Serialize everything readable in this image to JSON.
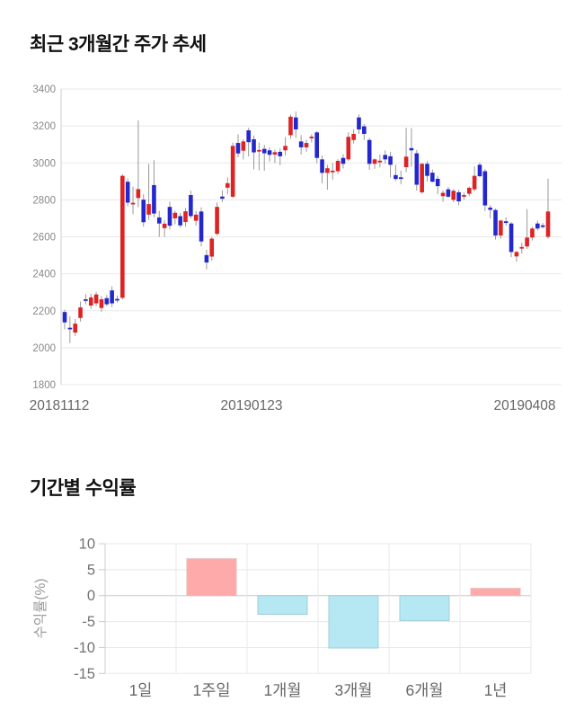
{
  "accent_colors": {
    "candle_up": "#dd2323",
    "candle_down": "#2428cc",
    "wick": "#999999",
    "grid": "#e8e8e8",
    "axis": "#cccccc",
    "zero_line": "#c9c9c9",
    "tick_text": "#888888",
    "label_text": "#666666",
    "bar_positive": "#ffaaaa",
    "bar_negative": "#b5e8f2",
    "bar_positive_border": "#e8b8b8",
    "bar_negative_border": "#9fcfda"
  },
  "chart_data": [
    {
      "type": "candlestick",
      "title": "최근 3개월간 주가 추세",
      "xlabel": "",
      "ylabel": "",
      "ylim": [
        1800,
        3400
      ],
      "y_ticks": [
        3400,
        3200,
        3000,
        2800,
        2600,
        2400,
        2200,
        2000,
        1800
      ],
      "grid": true,
      "x_tick_labels": [
        "20181112",
        "20190123",
        "20190408"
      ],
      "x_tick_label_centers": [
        66,
        280,
        584
      ],
      "ohlc_legend": "each candle = [open, high, low, close]; red = close>open, blue = close<open",
      "ohlc": [
        [
          2193,
          2205,
          2100,
          2137
        ],
        [
          2108,
          2170,
          2025,
          2102
        ],
        [
          2082,
          2155,
          2063,
          2130
        ],
        [
          2161,
          2250,
          2142,
          2218
        ],
        [
          2262,
          2290,
          2235,
          2258
        ],
        [
          2228,
          2292,
          2210,
          2272
        ],
        [
          2240,
          2302,
          2225,
          2288
        ],
        [
          2215,
          2280,
          2195,
          2262
        ],
        [
          2268,
          2285,
          2225,
          2235
        ],
        [
          2310,
          2332,
          2220,
          2240
        ],
        [
          2264,
          2283,
          2245,
          2260
        ],
        [
          2270,
          2938,
          2262,
          2930
        ],
        [
          2898,
          2915,
          2765,
          2785
        ],
        [
          2780,
          2872,
          2722,
          2784
        ],
        [
          2810,
          3230,
          2760,
          2858
        ],
        [
          2801,
          2830,
          2655,
          2679
        ],
        [
          2720,
          2995,
          2692,
          2777
        ],
        [
          2880,
          3015,
          2705,
          2726
        ],
        [
          2705,
          2740,
          2600,
          2672
        ],
        [
          2647,
          2690,
          2600,
          2671
        ],
        [
          2762,
          2790,
          2640,
          2660
        ],
        [
          2700,
          2742,
          2668,
          2730
        ],
        [
          2712,
          2730,
          2650,
          2662
        ],
        [
          2680,
          2755,
          2655,
          2738
        ],
        [
          2826,
          2850,
          2700,
          2712
        ],
        [
          2687,
          2740,
          2660,
          2720
        ],
        [
          2737,
          2760,
          2548,
          2575
        ],
        [
          2501,
          2530,
          2424,
          2461
        ],
        [
          2493,
          2600,
          2470,
          2590
        ],
        [
          2616,
          2786,
          2608,
          2762
        ],
        [
          2818,
          2852,
          2788,
          2806
        ],
        [
          2866,
          2922,
          2830,
          2890
        ],
        [
          2817,
          3110,
          2810,
          3092
        ],
        [
          3108,
          3155,
          3030,
          3051
        ],
        [
          3066,
          3128,
          3018,
          3116
        ],
        [
          3176,
          3190,
          3035,
          3112
        ],
        [
          3128,
          3148,
          2965,
          3057
        ],
        [
          3064,
          3110,
          2960,
          3070
        ],
        [
          3076,
          3098,
          2958,
          3052
        ],
        [
          3068,
          3085,
          3008,
          3044
        ],
        [
          3045,
          3072,
          3000,
          3058
        ],
        [
          3060,
          3078,
          2988,
          3036
        ],
        [
          3068,
          3140,
          3040,
          3092
        ],
        [
          3150,
          3262,
          3130,
          3250
        ],
        [
          3246,
          3278,
          3135,
          3181
        ],
        [
          3116,
          3150,
          3045,
          3084
        ],
        [
          3084,
          3125,
          3060,
          3108
        ],
        [
          3138,
          3155,
          3110,
          3142
        ],
        [
          3165,
          3172,
          2998,
          3027
        ],
        [
          3019,
          3040,
          2890,
          2946
        ],
        [
          2946,
          2990,
          2855,
          2971
        ],
        [
          2952,
          3000,
          2910,
          2958
        ],
        [
          2955,
          3020,
          2940,
          3011
        ],
        [
          3027,
          3048,
          2970,
          2995
        ],
        [
          3019,
          3165,
          3010,
          3141
        ],
        [
          3124,
          3182,
          3105,
          3157
        ],
        [
          3246,
          3262,
          3157,
          3181
        ],
        [
          3198,
          3210,
          3124,
          3157
        ],
        [
          3124,
          3135,
          2963,
          2995
        ],
        [
          2995,
          3025,
          2968,
          3019
        ],
        [
          3005,
          3045,
          2975,
          3012
        ],
        [
          3043,
          3068,
          2995,
          3019
        ],
        [
          3036,
          3060,
          2920,
          2990
        ],
        [
          2934,
          2990,
          2902,
          2913
        ],
        [
          2922,
          2958,
          2885,
          2918
        ],
        [
          2977,
          3190,
          2950,
          3034
        ],
        [
          3080,
          3188,
          2980,
          3068
        ],
        [
          3052,
          3070,
          2850,
          2882
        ],
        [
          2841,
          3000,
          2832,
          2995
        ],
        [
          2995,
          3010,
          2900,
          2930
        ],
        [
          2947,
          2965,
          2895,
          2898
        ],
        [
          2914,
          2930,
          2830,
          2874
        ],
        [
          2820,
          2852,
          2790,
          2838
        ],
        [
          2857,
          2870,
          2812,
          2817
        ],
        [
          2800,
          2858,
          2788,
          2849
        ],
        [
          2841,
          2855,
          2770,
          2792
        ],
        [
          2822,
          2840,
          2800,
          2826
        ],
        [
          2833,
          2872,
          2820,
          2865
        ],
        [
          2857,
          2982,
          2845,
          2930
        ],
        [
          2990,
          3002,
          2922,
          2928
        ],
        [
          2955,
          2968,
          2740,
          2770
        ],
        [
          2758,
          2772,
          2700,
          2746
        ],
        [
          2745,
          2752,
          2585,
          2607
        ],
        [
          2607,
          2692,
          2590,
          2688
        ],
        [
          2684,
          2705,
          2660,
          2680
        ],
        [
          2672,
          2680,
          2490,
          2518
        ],
        [
          2494,
          2525,
          2465,
          2518
        ],
        [
          2540,
          2568,
          2510,
          2545
        ],
        [
          2548,
          2750,
          2535,
          2596
        ],
        [
          2596,
          2655,
          2580,
          2645
        ],
        [
          2672,
          2688,
          2635,
          2645
        ],
        [
          2662,
          2675,
          2645,
          2655
        ],
        [
          2600,
          2914,
          2590,
          2737
        ]
      ]
    },
    {
      "type": "bar",
      "title": "기간별 수익률",
      "xlabel": "",
      "ylabel": "수익률(%)",
      "categories": [
        "1일",
        "1주일",
        "1개월",
        "3개월",
        "6개월",
        "1년"
      ],
      "values": [
        0,
        7.1,
        -3.6,
        -10.1,
        -4.8,
        1.4
      ],
      "ylim": [
        -15,
        10
      ],
      "y_ticks": [
        10,
        5,
        0,
        -5,
        -10,
        -15
      ],
      "grid": true,
      "legend": "none"
    }
  ]
}
